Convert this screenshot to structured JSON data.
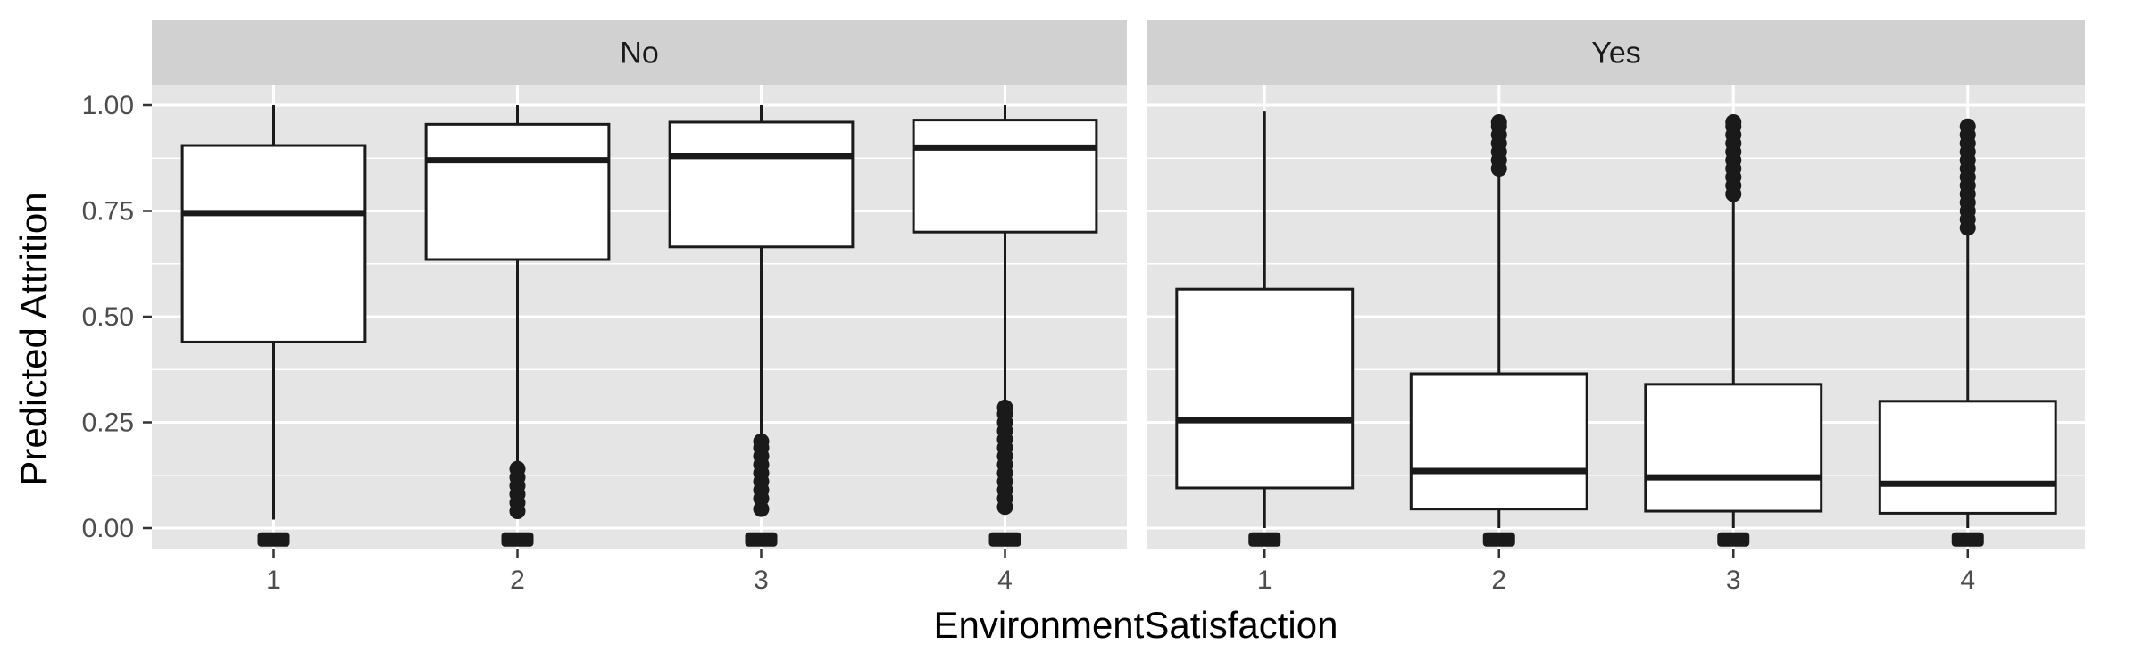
{
  "chart_data": {
    "type": "boxplot",
    "xlabel": "EnvironmentSatisfaction",
    "ylabel": "Predicted Attrition",
    "ylim": [
      -0.04,
      1.0
    ],
    "yticks": [
      "0.00",
      "0.25",
      "0.50",
      "0.75",
      "1.00"
    ],
    "ytick_values": [
      0,
      0.25,
      0.5,
      0.75,
      1.0
    ],
    "categories": [
      "1",
      "2",
      "3",
      "4"
    ],
    "grid": true,
    "colors": {
      "panel_bg": "#e5e5e5",
      "strip_bg": "#d1d1d1",
      "grid": "#ffffff",
      "box_fill": "#ffffff",
      "box_line": "#1a1a1a"
    },
    "facets": [
      {
        "label": "No",
        "boxes": [
          {
            "category": "1",
            "whisker_low": 0.02,
            "q1": 0.44,
            "median": 0.745,
            "q3": 0.905,
            "whisker_high": 1.0,
            "outliers_low": [
              -0.027
            ],
            "outliers_high": []
          },
          {
            "category": "2",
            "whisker_low": 0.15,
            "q1": 0.635,
            "median": 0.87,
            "q3": 0.955,
            "whisker_high": 1.0,
            "outliers_low": [
              -0.027,
              0.04,
              0.06,
              0.08,
              0.1,
              0.12,
              0.14
            ],
            "outliers_high": []
          },
          {
            "category": "3",
            "whisker_low": 0.21,
            "q1": 0.665,
            "median": 0.88,
            "q3": 0.96,
            "whisker_high": 1.0,
            "outliers_low": [
              -0.027,
              0.045,
              0.07,
              0.09,
              0.11,
              0.13,
              0.15,
              0.17,
              0.19,
              0.205
            ],
            "outliers_high": []
          },
          {
            "category": "4",
            "whisker_low": 0.29,
            "q1": 0.7,
            "median": 0.9,
            "q3": 0.965,
            "whisker_high": 1.0,
            "outliers_low": [
              -0.027,
              0.05,
              0.07,
              0.09,
              0.11,
              0.13,
              0.15,
              0.17,
              0.19,
              0.21,
              0.23,
              0.25,
              0.27,
              0.285
            ],
            "outliers_high": []
          }
        ]
      },
      {
        "label": "Yes",
        "boxes": [
          {
            "category": "1",
            "whisker_low": 0.0,
            "q1": 0.095,
            "median": 0.255,
            "q3": 0.565,
            "whisker_high": 0.985,
            "outliers_low": [
              -0.027
            ],
            "outliers_high": []
          },
          {
            "category": "2",
            "whisker_low": 0.0,
            "q1": 0.045,
            "median": 0.135,
            "q3": 0.365,
            "whisker_high": 0.84,
            "outliers_low": [
              -0.027
            ],
            "outliers_high": [
              0.85,
              0.87,
              0.89,
              0.91,
              0.93,
              0.95,
              0.96
            ]
          },
          {
            "category": "3",
            "whisker_low": 0.0,
            "q1": 0.04,
            "median": 0.12,
            "q3": 0.34,
            "whisker_high": 0.78,
            "outliers_low": [
              -0.027
            ],
            "outliers_high": [
              0.79,
              0.81,
              0.83,
              0.85,
              0.87,
              0.89,
              0.91,
              0.93,
              0.95,
              0.96
            ]
          },
          {
            "category": "4",
            "whisker_low": 0.0,
            "q1": 0.035,
            "median": 0.105,
            "q3": 0.3,
            "whisker_high": 0.7,
            "outliers_low": [
              -0.027
            ],
            "outliers_high": [
              0.71,
              0.73,
              0.75,
              0.77,
              0.79,
              0.81,
              0.83,
              0.85,
              0.87,
              0.89,
              0.91,
              0.93,
              0.95
            ]
          }
        ]
      }
    ]
  }
}
